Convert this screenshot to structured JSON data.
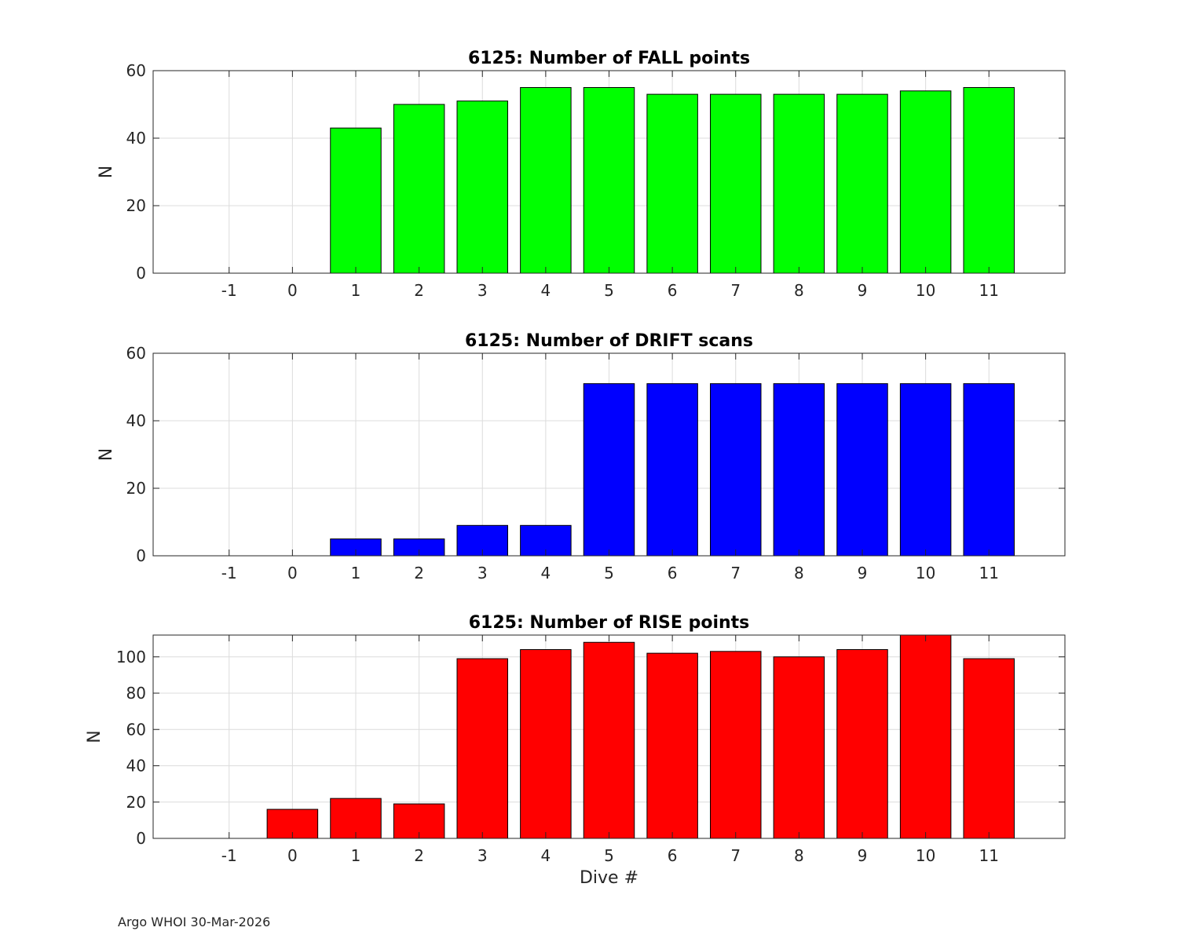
{
  "chart_data": [
    {
      "type": "bar",
      "title": "6125: Number of FALL points",
      "xlabel": "",
      "ylabel": "N",
      "categories": [
        "-1",
        "0",
        "1",
        "2",
        "3",
        "4",
        "5",
        "6",
        "7",
        "8",
        "9",
        "10",
        "11"
      ],
      "values": [
        0,
        0,
        43,
        50,
        51,
        55,
        55,
        53,
        53,
        53,
        53,
        54,
        55
      ],
      "color": "#00ff00",
      "xlim": [
        -2.2,
        12.2
      ],
      "ylim": [
        0,
        60
      ],
      "yticks": [
        0,
        20,
        40,
        60
      ],
      "grid": true
    },
    {
      "type": "bar",
      "title": "6125: Number of DRIFT scans",
      "xlabel": "",
      "ylabel": "N",
      "categories": [
        "-1",
        "0",
        "1",
        "2",
        "3",
        "4",
        "5",
        "6",
        "7",
        "8",
        "9",
        "10",
        "11"
      ],
      "values": [
        0,
        0,
        5,
        5,
        9,
        9,
        51,
        51,
        51,
        51,
        51,
        51,
        51
      ],
      "color": "#0000ff",
      "xlim": [
        -2.2,
        12.2
      ],
      "ylim": [
        0,
        60
      ],
      "yticks": [
        0,
        20,
        40,
        60
      ],
      "grid": true
    },
    {
      "type": "bar",
      "title": "6125: Number of RISE points",
      "xlabel": "Dive #",
      "ylabel": "N",
      "categories": [
        "-1",
        "0",
        "1",
        "2",
        "3",
        "4",
        "5",
        "6",
        "7",
        "8",
        "9",
        "10",
        "11"
      ],
      "values": [
        0,
        16,
        22,
        19,
        99,
        104,
        108,
        102,
        103,
        100,
        104,
        112,
        99
      ],
      "color": "#ff0000",
      "xlim": [
        -2.2,
        12.2
      ],
      "ylim": [
        0,
        112
      ],
      "yticks": [
        0,
        20,
        40,
        60,
        80,
        100
      ],
      "grid": true
    }
  ],
  "footer": "Argo WHOI 30-Mar-2026"
}
